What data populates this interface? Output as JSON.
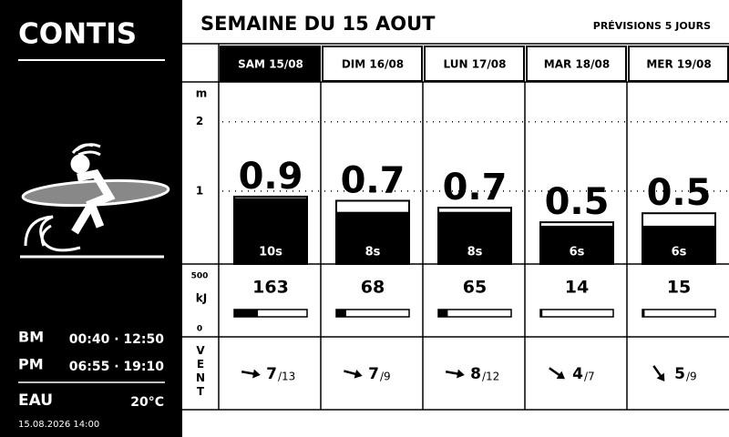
{
  "location": "CONTIS",
  "tides": [
    {
      "label": "BM",
      "times": "00:40 · 12:50"
    },
    {
      "label": "PM",
      "times": "06:55 · 19:10"
    }
  ],
  "water": {
    "label": "EAU",
    "temp": "20°C"
  },
  "updated": "15.08.2026 14:00",
  "header": {
    "title": "SEMAINE DU 15 AOUT",
    "subtitle": "PRÉVISIONS 5 JOURS"
  },
  "height_axis": {
    "unit": "m",
    "lim": [
      0,
      2.6
    ],
    "ticks": [
      1,
      2
    ]
  },
  "energy_axis": {
    "unit": "kJ",
    "lim": [
      0,
      500
    ],
    "ticks": [
      0,
      500
    ]
  },
  "wind_label": "VENT",
  "selected_day": 0,
  "days": [
    {
      "label": "SAM 15/08",
      "height": 0.9,
      "max": 0.92,
      "period": "10s",
      "energy": 163,
      "wind": 7,
      "gust": 13,
      "gust_label": "/13",
      "wind_dir": 100
    },
    {
      "label": "DIM 16/08",
      "height": 0.7,
      "max": 0.86,
      "period": "8s",
      "energy": 68,
      "wind": 7,
      "gust": 9,
      "gust_label": "/9",
      "wind_dir": 105
    },
    {
      "label": "LUN 17/08",
      "height": 0.7,
      "max": 0.76,
      "period": "8s",
      "energy": 65,
      "wind": 8,
      "gust": 12,
      "gust_label": "/12",
      "wind_dir": 100
    },
    {
      "label": "MAR 18/08",
      "height": 0.5,
      "max": 0.55,
      "period": "6s",
      "energy": 14,
      "wind": 4,
      "gust": 7,
      "gust_label": "/7",
      "wind_dir": 125
    },
    {
      "label": "MER 19/08",
      "height": 0.5,
      "max": 0.68,
      "period": "6s",
      "energy": 15,
      "wind": 5,
      "gust": 9,
      "gust_label": "/9",
      "wind_dir": 145
    }
  ]
}
